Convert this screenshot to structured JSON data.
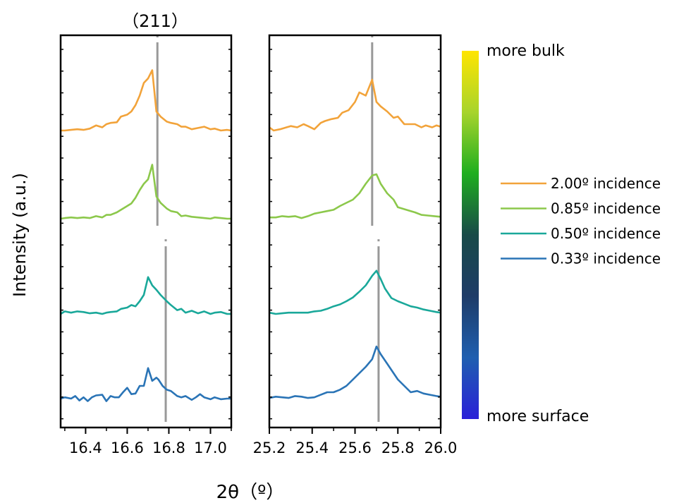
{
  "chart_data": {
    "type": "line",
    "title": "（211）",
    "xlabel": "2θ（º）",
    "ylabel": "Intensity (a.u.)",
    "grid": false,
    "legend_position": "right",
    "colorbar": {
      "top_label": "more bulk",
      "bottom_label": "more surface",
      "stops": [
        "#ffe500",
        "#a8d42c",
        "#1fae1f",
        "#184a48",
        "#1e3c68",
        "#1f5fb0",
        "#2a20d8"
      ]
    },
    "legend": [
      {
        "name": "2.00º incidence",
        "color": "#f2a33a"
      },
      {
        "name": "0.85º incidence",
        "color": "#8cc84b"
      },
      {
        "name": "0.50º incidence",
        "color": "#1aa89a"
      },
      {
        "name": "0.33º incidence",
        "color": "#2a74b6"
      }
    ],
    "panels": [
      {
        "xlim": [
          16.28,
          17.1
        ],
        "ticks": [
          16.4,
          16.6,
          16.8,
          17.0
        ],
        "tick_labels": [
          "16.4",
          "16.6",
          "16.8",
          "17.0"
        ],
        "ref_lines": [
          {
            "x": 16.745,
            "from_top": 0.0,
            "to_bottom": 0.5
          },
          {
            "x": 16.785,
            "from_top": 0.52,
            "to_bottom": 1.0
          }
        ],
        "series": [
          {
            "name": "2.00º incidence",
            "color": "#f2a33a",
            "offset": 3,
            "amplitude": 1.0,
            "x": [
              16.28,
              16.3,
              16.33,
              16.36,
              16.39,
              16.42,
              16.45,
              16.48,
              16.5,
              16.52,
              16.55,
              16.57,
              16.6,
              16.62,
              16.64,
              16.66,
              16.68,
              16.7,
              16.72,
              16.74,
              16.76,
              16.79,
              16.81,
              16.84,
              16.86,
              16.88,
              16.91,
              16.94,
              16.97,
              17.0,
              17.02,
              17.05,
              17.08,
              17.1
            ],
            "y": [
              0.0,
              0.0,
              0.01,
              0.02,
              0.01,
              0.03,
              0.08,
              0.05,
              0.1,
              0.12,
              0.13,
              0.22,
              0.25,
              0.3,
              0.4,
              0.55,
              0.75,
              0.82,
              0.95,
              0.3,
              0.22,
              0.14,
              0.12,
              0.1,
              0.06,
              0.06,
              0.02,
              0.04,
              0.06,
              0.02,
              0.03,
              0.0,
              0.01,
              0.0
            ]
          },
          {
            "name": "0.85º incidence",
            "color": "#8cc84b",
            "offset": 2,
            "amplitude": 1.0,
            "x": [
              16.28,
              16.3,
              16.33,
              16.36,
              16.39,
              16.42,
              16.45,
              16.48,
              16.5,
              16.52,
              16.55,
              16.57,
              16.6,
              16.62,
              16.64,
              16.66,
              16.68,
              16.7,
              16.72,
              16.74,
              16.76,
              16.79,
              16.81,
              16.84,
              16.86,
              16.88,
              16.91,
              16.94,
              16.97,
              17.0,
              17.02,
              17.05,
              17.08,
              17.1
            ],
            "y": [
              0.0,
              0.01,
              0.02,
              0.01,
              0.02,
              0.01,
              0.04,
              0.02,
              0.06,
              0.06,
              0.1,
              0.14,
              0.2,
              0.24,
              0.33,
              0.45,
              0.55,
              0.62,
              0.85,
              0.35,
              0.25,
              0.16,
              0.12,
              0.1,
              0.04,
              0.05,
              0.03,
              0.02,
              0.01,
              0.0,
              0.02,
              0.01,
              0.0,
              0.0
            ]
          },
          {
            "name": "0.50º incidence",
            "color": "#1aa89a",
            "offset": 1,
            "amplitude": 1.0,
            "x": [
              16.28,
              16.3,
              16.33,
              16.36,
              16.39,
              16.42,
              16.45,
              16.48,
              16.5,
              16.52,
              16.55,
              16.57,
              16.6,
              16.62,
              16.64,
              16.66,
              16.68,
              16.7,
              16.72,
              16.74,
              16.76,
              16.79,
              16.81,
              16.84,
              16.86,
              16.88,
              16.91,
              16.94,
              16.97,
              17.0,
              17.02,
              17.05,
              17.08,
              17.1
            ],
            "y": [
              0.0,
              0.04,
              0.02,
              0.04,
              0.03,
              0.01,
              0.02,
              0.0,
              0.02,
              0.03,
              0.04,
              0.08,
              0.1,
              0.14,
              0.12,
              0.2,
              0.3,
              0.58,
              0.45,
              0.38,
              0.3,
              0.2,
              0.14,
              0.06,
              0.08,
              0.02,
              0.05,
              0.01,
              0.04,
              0.0,
              0.02,
              0.03,
              0.0,
              0.0
            ]
          },
          {
            "name": "0.33º incidence",
            "color": "#2a74b6",
            "offset": 0,
            "amplitude": 1.0,
            "x": [
              16.28,
              16.3,
              16.33,
              16.35,
              16.37,
              16.39,
              16.41,
              16.43,
              16.45,
              16.48,
              16.5,
              16.52,
              16.54,
              16.56,
              16.58,
              16.6,
              16.62,
              16.64,
              16.66,
              16.68,
              16.7,
              16.72,
              16.74,
              16.75,
              16.77,
              16.79,
              16.81,
              16.84,
              16.86,
              16.88,
              16.91,
              16.93,
              16.95,
              16.97,
              17.0,
              17.02,
              17.05,
              17.08,
              17.1
            ],
            "y": [
              0.0,
              0.02,
              0.0,
              0.04,
              -0.03,
              0.02,
              -0.04,
              0.02,
              0.05,
              0.06,
              -0.04,
              0.04,
              0.02,
              0.02,
              0.1,
              0.17,
              0.07,
              0.08,
              0.2,
              0.2,
              0.48,
              0.28,
              0.33,
              0.3,
              0.2,
              0.14,
              0.12,
              0.04,
              0.02,
              0.04,
              -0.02,
              0.02,
              0.07,
              0.02,
              -0.01,
              0.02,
              -0.01,
              0.0,
              0.0
            ]
          }
        ]
      },
      {
        "xlim": [
          25.2,
          26.0
        ],
        "ticks": [
          25.2,
          25.4,
          25.6,
          25.8,
          26.0
        ],
        "tick_labels": [
          "25.2",
          "25.4",
          "25.6",
          "25.8",
          "26.0"
        ],
        "ref_lines": [
          {
            "x": 25.68,
            "from_top": 0.0,
            "to_bottom": 0.5
          },
          {
            "x": 25.71,
            "from_top": 0.52,
            "to_bottom": 1.0
          }
        ],
        "series": [
          {
            "name": "2.00º incidence",
            "color": "#f2a33a",
            "offset": 3,
            "amplitude": 1.0,
            "x": [
              25.2,
              25.22,
              25.25,
              25.28,
              25.3,
              25.33,
              25.36,
              25.38,
              25.41,
              25.44,
              25.46,
              25.49,
              25.52,
              25.54,
              25.57,
              25.6,
              25.62,
              25.65,
              25.68,
              25.7,
              25.72,
              25.75,
              25.78,
              25.8,
              25.83,
              25.86,
              25.88,
              25.91,
              25.93,
              25.96,
              25.98,
              26.0
            ],
            "y": [
              0.05,
              0.0,
              0.02,
              0.05,
              0.07,
              0.05,
              0.1,
              0.07,
              0.02,
              0.12,
              0.15,
              0.18,
              0.2,
              0.28,
              0.32,
              0.45,
              0.6,
              0.55,
              0.8,
              0.45,
              0.38,
              0.3,
              0.2,
              0.22,
              0.1,
              0.1,
              0.1,
              0.05,
              0.08,
              0.05,
              0.08,
              0.06
            ]
          },
          {
            "name": "0.85º incidence",
            "color": "#8cc84b",
            "offset": 2,
            "amplitude": 1.0,
            "x": [
              25.2,
              25.23,
              25.26,
              25.29,
              25.32,
              25.35,
              25.38,
              25.41,
              25.44,
              25.47,
              25.5,
              25.53,
              25.56,
              25.59,
              25.62,
              25.65,
              25.68,
              25.7,
              25.72,
              25.75,
              25.78,
              25.8,
              25.83,
              25.86,
              25.88,
              25.91,
              25.94,
              25.97,
              26.0
            ],
            "y": [
              0.02,
              0.02,
              0.04,
              0.03,
              0.04,
              0.01,
              0.04,
              0.08,
              0.1,
              0.12,
              0.14,
              0.2,
              0.25,
              0.3,
              0.4,
              0.55,
              0.68,
              0.7,
              0.55,
              0.4,
              0.3,
              0.18,
              0.15,
              0.12,
              0.1,
              0.06,
              0.05,
              0.04,
              0.03
            ]
          },
          {
            "name": "0.50º incidence",
            "color": "#1aa89a",
            "offset": 1,
            "amplitude": 1.0,
            "x": [
              25.2,
              25.23,
              25.26,
              25.29,
              25.32,
              25.35,
              25.38,
              25.41,
              25.44,
              25.47,
              25.5,
              25.53,
              25.56,
              25.59,
              25.62,
              25.65,
              25.68,
              25.7,
              25.72,
              25.74,
              25.77,
              25.8,
              25.83,
              25.86,
              25.89,
              25.92,
              25.95,
              25.98,
              26.0
            ],
            "y": [
              0.02,
              0.0,
              0.01,
              0.02,
              0.02,
              0.02,
              0.02,
              0.04,
              0.05,
              0.08,
              0.12,
              0.15,
              0.2,
              0.26,
              0.35,
              0.45,
              0.6,
              0.68,
              0.55,
              0.4,
              0.25,
              0.2,
              0.16,
              0.12,
              0.1,
              0.07,
              0.05,
              0.03,
              0.02
            ]
          },
          {
            "name": "0.33º incidence",
            "color": "#2a74b6",
            "offset": 0,
            "amplitude": 1.0,
            "x": [
              25.2,
              25.23,
              25.26,
              25.29,
              25.32,
              25.35,
              25.38,
              25.41,
              25.44,
              25.47,
              25.5,
              25.53,
              25.56,
              25.59,
              25.62,
              25.65,
              25.68,
              25.7,
              25.72,
              25.75,
              25.78,
              25.8,
              25.83,
              25.86,
              25.89,
              25.92,
              25.95,
              25.98,
              26.0
            ],
            "y": [
              0.01,
              0.03,
              0.02,
              0.01,
              0.04,
              0.03,
              0.01,
              0.02,
              0.06,
              0.1,
              0.1,
              0.14,
              0.2,
              0.3,
              0.4,
              0.5,
              0.62,
              0.82,
              0.7,
              0.55,
              0.4,
              0.3,
              0.2,
              0.1,
              0.12,
              0.08,
              0.06,
              0.04,
              0.03
            ]
          }
        ]
      }
    ]
  }
}
